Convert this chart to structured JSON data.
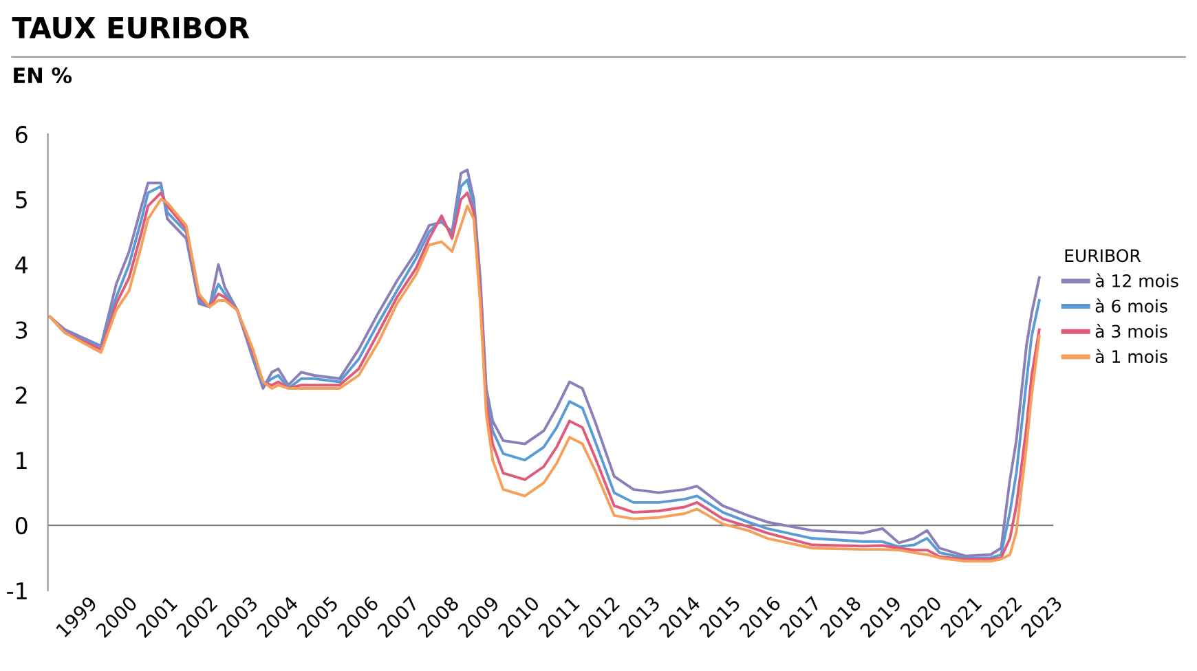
{
  "chart_data": {
    "type": "line",
    "title": "TAUX EURIBOR",
    "subtitle": "EN %",
    "legend_title": "EURIBOR",
    "legend": "right",
    "grid": false,
    "marker": "none",
    "line_style": "solid",
    "x": [
      1998.05,
      1998.43,
      1999.32,
      1999.7,
      2000.02,
      2000.33,
      2000.49,
      2000.81,
      2000.97,
      2001.44,
      2001.76,
      2002.02,
      2002.24,
      2002.4,
      2002.71,
      2003.1,
      2003.35,
      2003.57,
      2003.73,
      2003.98,
      2004.3,
      2004.62,
      2005.25,
      2005.73,
      2006.21,
      2006.68,
      2007.16,
      2007.48,
      2007.79,
      2008.05,
      2008.27,
      2008.43,
      2008.59,
      2008.75,
      2008.9,
      2009.06,
      2009.32,
      2009.86,
      2010.33,
      2010.65,
      2010.97,
      2011.29,
      2011.6,
      2012.08,
      2012.56,
      2013.19,
      2013.83,
      2014.14,
      2014.78,
      2015.41,
      2015.89,
      2017.0,
      2018.27,
      2018.75,
      2019.16,
      2019.54,
      2019.86,
      2020.17,
      2020.81,
      2021.44,
      2021.7,
      2021.92,
      2022.08,
      2022.33,
      2022.46,
      2022.65
    ],
    "series": [
      {
        "name": "à 12 mois",
        "color": "#8a7fb8",
        "values": [
          3.2,
          3.0,
          2.75,
          3.7,
          4.2,
          4.9,
          5.25,
          5.25,
          4.7,
          4.4,
          3.4,
          3.35,
          4.0,
          3.65,
          3.3,
          2.55,
          2.1,
          2.35,
          2.4,
          2.15,
          2.35,
          2.3,
          2.25,
          2.7,
          3.25,
          3.75,
          4.2,
          4.6,
          4.65,
          4.5,
          5.4,
          5.45,
          5.0,
          3.8,
          2.1,
          1.6,
          1.3,
          1.25,
          1.45,
          1.8,
          2.2,
          2.1,
          1.6,
          0.75,
          0.55,
          0.5,
          0.55,
          0.6,
          0.3,
          0.15,
          0.05,
          -0.08,
          -0.12,
          -0.05,
          -0.27,
          -0.2,
          -0.08,
          -0.35,
          -0.47,
          -0.45,
          -0.35,
          0.7,
          1.3,
          2.75,
          3.25,
          3.8
        ]
      },
      {
        "name": "à 6 mois",
        "color": "#5b9bd5",
        "values": [
          3.2,
          2.95,
          2.75,
          3.5,
          4.0,
          4.7,
          5.1,
          5.2,
          4.8,
          4.5,
          3.45,
          3.35,
          3.7,
          3.55,
          3.3,
          2.6,
          2.15,
          2.25,
          2.3,
          2.1,
          2.25,
          2.25,
          2.2,
          2.55,
          3.1,
          3.6,
          4.1,
          4.5,
          4.7,
          4.45,
          5.2,
          5.3,
          4.9,
          3.7,
          2.0,
          1.45,
          1.1,
          1.0,
          1.2,
          1.5,
          1.9,
          1.8,
          1.3,
          0.5,
          0.35,
          0.35,
          0.4,
          0.45,
          0.2,
          0.05,
          -0.05,
          -0.2,
          -0.25,
          -0.25,
          -0.33,
          -0.3,
          -0.2,
          -0.42,
          -0.5,
          -0.5,
          -0.45,
          0.2,
          0.8,
          2.2,
          2.9,
          3.45
        ]
      },
      {
        "name": "à 3 mois",
        "color": "#e05a7a",
        "values": [
          3.2,
          2.95,
          2.7,
          3.4,
          3.8,
          4.5,
          4.9,
          5.1,
          4.9,
          4.55,
          3.5,
          3.35,
          3.55,
          3.5,
          3.3,
          2.65,
          2.2,
          2.15,
          2.2,
          2.1,
          2.15,
          2.15,
          2.15,
          2.4,
          2.95,
          3.5,
          3.95,
          4.4,
          4.75,
          4.4,
          5.0,
          5.1,
          4.8,
          3.6,
          1.9,
          1.25,
          0.8,
          0.7,
          0.9,
          1.2,
          1.6,
          1.5,
          1.05,
          0.3,
          0.2,
          0.22,
          0.28,
          0.35,
          0.1,
          -0.02,
          -0.12,
          -0.3,
          -0.32,
          -0.31,
          -0.35,
          -0.38,
          -0.38,
          -0.48,
          -0.52,
          -0.52,
          -0.5,
          -0.2,
          0.3,
          1.5,
          2.3,
          3.0
        ]
      },
      {
        "name": "à 1 mois",
        "color": "#f5a05a",
        "values": [
          3.2,
          2.95,
          2.65,
          3.3,
          3.6,
          4.3,
          4.7,
          5.0,
          4.95,
          4.6,
          3.55,
          3.35,
          3.45,
          3.45,
          3.3,
          2.7,
          2.2,
          2.1,
          2.15,
          2.1,
          2.1,
          2.1,
          2.1,
          2.3,
          2.8,
          3.4,
          3.85,
          4.3,
          4.35,
          4.2,
          4.6,
          4.9,
          4.7,
          3.4,
          1.7,
          1.0,
          0.55,
          0.45,
          0.65,
          0.95,
          1.35,
          1.25,
          0.85,
          0.15,
          0.1,
          0.12,
          0.18,
          0.25,
          0.02,
          -0.08,
          -0.2,
          -0.35,
          -0.37,
          -0.37,
          -0.38,
          -0.42,
          -0.45,
          -0.5,
          -0.55,
          -0.55,
          -0.52,
          -0.45,
          -0.1,
          1.2,
          2.0,
          2.9
        ]
      }
    ],
    "xlim": [
      1998.0,
      2023.0
    ],
    "xticks": [
      1999,
      2000,
      2001,
      2002,
      2003,
      2004,
      2005,
      2006,
      2007,
      2008,
      2009,
      2010,
      2011,
      2012,
      2013,
      2014,
      2015,
      2016,
      2017,
      2018,
      2019,
      2020,
      2021,
      2022,
      2023
    ],
    "ylim": [
      -1,
      6
    ],
    "yticks": [
      -1,
      0,
      1,
      2,
      3,
      4,
      5,
      6
    ],
    "ref_lines": [
      {
        "axis": "y",
        "value": 0,
        "color": "#808080"
      }
    ]
  }
}
